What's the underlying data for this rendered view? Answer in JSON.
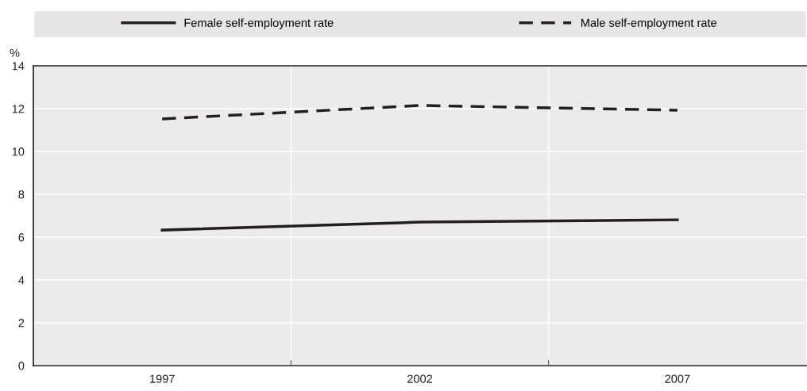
{
  "chart_data": {
    "type": "line",
    "ylabel": "%",
    "categories": [
      "1997",
      "2002",
      "2007"
    ],
    "series": [
      {
        "name": "Female self-employment rate",
        "color": "#231f20",
        "line_style": "solid",
        "values": [
          6.33,
          6.7,
          6.81
        ]
      },
      {
        "name": "Male self-employment rate",
        "color": "#231f20",
        "line_style": "dashed",
        "values": [
          11.52,
          12.15,
          11.93
        ]
      }
    ],
    "ylim": [
      0,
      14
    ],
    "yticks": [
      0,
      2,
      4,
      6,
      8,
      10,
      12,
      14
    ],
    "grid": true,
    "legend": "top",
    "marker": "none"
  }
}
